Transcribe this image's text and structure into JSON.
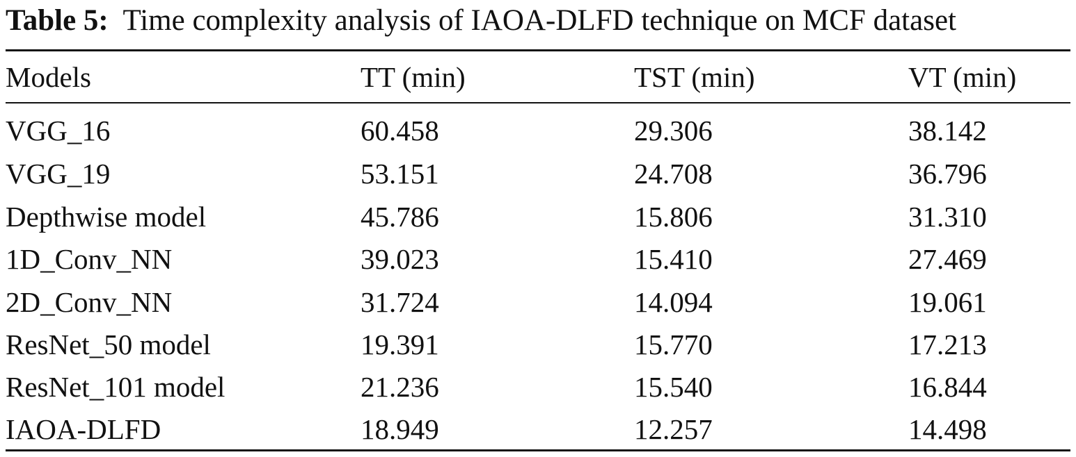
{
  "caption": {
    "label": "Table 5:",
    "text": "Time complexity analysis of IAOA-DLFD technique on MCF dataset"
  },
  "table": {
    "headers": [
      "Models",
      "TT (min)",
      "TST (min)",
      "VT (min)"
    ],
    "rows": [
      [
        "VGG_16",
        "60.458",
        "29.306",
        "38.142"
      ],
      [
        "VGG_19",
        "53.151",
        "24.708",
        "36.796"
      ],
      [
        "Depthwise model",
        "45.786",
        "15.806",
        "31.310"
      ],
      [
        "1D_Conv_NN",
        "39.023",
        "15.410",
        "27.469"
      ],
      [
        "2D_Conv_NN",
        "31.724",
        "14.094",
        "19.061"
      ],
      [
        "ResNet_50 model",
        "19.391",
        "15.770",
        "17.213"
      ],
      [
        "ResNet_101 model",
        "21.236",
        "15.540",
        "16.844"
      ],
      [
        "IAOA-DLFD",
        "18.949",
        "12.257",
        "14.498"
      ]
    ]
  }
}
